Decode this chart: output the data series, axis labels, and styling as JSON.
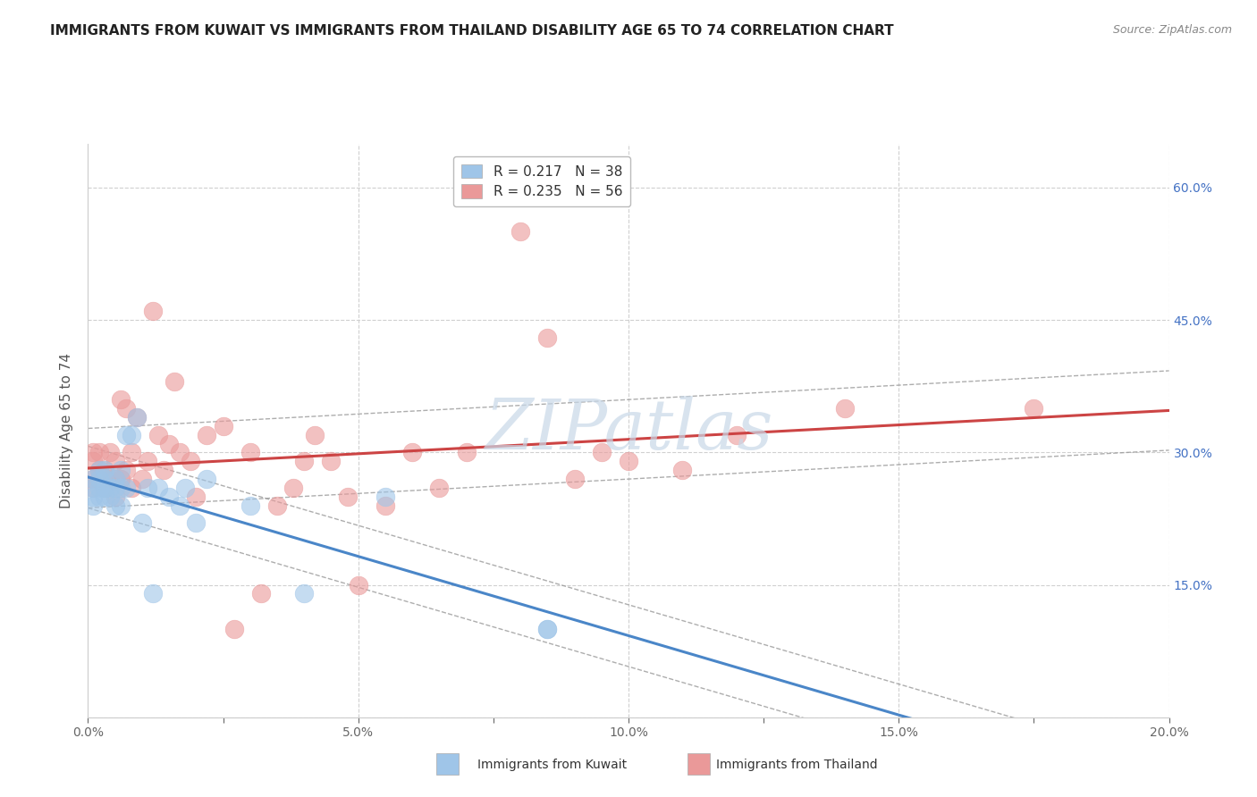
{
  "title": "IMMIGRANTS FROM KUWAIT VS IMMIGRANTS FROM THAILAND DISABILITY AGE 65 TO 74 CORRELATION CHART",
  "source": "Source: ZipAtlas.com",
  "ylabel": "Disability Age 65 to 74",
  "xlim": [
    0.0,
    0.2
  ],
  "ylim": [
    0.0,
    0.65
  ],
  "xticks": [
    0.0,
    0.025,
    0.05,
    0.075,
    0.1,
    0.125,
    0.15,
    0.175,
    0.2
  ],
  "xticklabels": [
    "0.0%",
    "",
    "5.0%",
    "",
    "10.0%",
    "",
    "15.0%",
    "",
    "20.0%"
  ],
  "yticks": [
    0.0,
    0.15,
    0.3,
    0.45,
    0.6
  ],
  "yticklabels_right": [
    "",
    "15.0%",
    "30.0%",
    "45.0%",
    "60.0%"
  ],
  "kuwait_color": "#9fc5e8",
  "kuwait_line_color": "#4a86c8",
  "thailand_color": "#ea9999",
  "thailand_line_color": "#cc4444",
  "kuwait_R": 0.217,
  "kuwait_N": 38,
  "thailand_R": 0.235,
  "thailand_N": 56,
  "kuwait_x": [
    0.001,
    0.001,
    0.001,
    0.001,
    0.002,
    0.002,
    0.002,
    0.002,
    0.003,
    0.003,
    0.003,
    0.003,
    0.004,
    0.004,
    0.005,
    0.005,
    0.005,
    0.006,
    0.006,
    0.006,
    0.007,
    0.007,
    0.008,
    0.009,
    0.01,
    0.011,
    0.012,
    0.013,
    0.015,
    0.017,
    0.018,
    0.02,
    0.022,
    0.03,
    0.04,
    0.055,
    0.085,
    0.085
  ],
  "kuwait_y": [
    0.26,
    0.24,
    0.25,
    0.27,
    0.25,
    0.26,
    0.27,
    0.28,
    0.25,
    0.26,
    0.27,
    0.28,
    0.25,
    0.26,
    0.24,
    0.26,
    0.27,
    0.24,
    0.26,
    0.28,
    0.26,
    0.32,
    0.32,
    0.34,
    0.22,
    0.26,
    0.14,
    0.26,
    0.25,
    0.24,
    0.26,
    0.22,
    0.27,
    0.24,
    0.14,
    0.25,
    0.1,
    0.1
  ],
  "thailand_x": [
    0.001,
    0.001,
    0.001,
    0.001,
    0.002,
    0.002,
    0.002,
    0.003,
    0.003,
    0.004,
    0.004,
    0.005,
    0.005,
    0.005,
    0.006,
    0.006,
    0.007,
    0.007,
    0.008,
    0.008,
    0.009,
    0.01,
    0.011,
    0.012,
    0.013,
    0.014,
    0.015,
    0.016,
    0.017,
    0.019,
    0.02,
    0.022,
    0.025,
    0.027,
    0.03,
    0.032,
    0.035,
    0.038,
    0.04,
    0.042,
    0.045,
    0.048,
    0.05,
    0.055,
    0.06,
    0.065,
    0.07,
    0.08,
    0.085,
    0.09,
    0.095,
    0.1,
    0.11,
    0.12,
    0.14,
    0.175
  ],
  "thailand_y": [
    0.26,
    0.27,
    0.29,
    0.3,
    0.27,
    0.28,
    0.3,
    0.26,
    0.28,
    0.27,
    0.3,
    0.25,
    0.27,
    0.29,
    0.27,
    0.36,
    0.28,
    0.35,
    0.26,
    0.3,
    0.34,
    0.27,
    0.29,
    0.46,
    0.32,
    0.28,
    0.31,
    0.38,
    0.3,
    0.29,
    0.25,
    0.32,
    0.33,
    0.1,
    0.3,
    0.14,
    0.24,
    0.26,
    0.29,
    0.32,
    0.29,
    0.25,
    0.15,
    0.24,
    0.3,
    0.26,
    0.3,
    0.55,
    0.43,
    0.27,
    0.3,
    0.29,
    0.28,
    0.32,
    0.35,
    0.35
  ],
  "background_color": "#ffffff",
  "grid_color": "#d0d0d0",
  "title_fontsize": 11,
  "axis_label_fontsize": 11,
  "tick_fontsize": 10,
  "legend_fontsize": 11,
  "watermark": "ZIPatlas"
}
